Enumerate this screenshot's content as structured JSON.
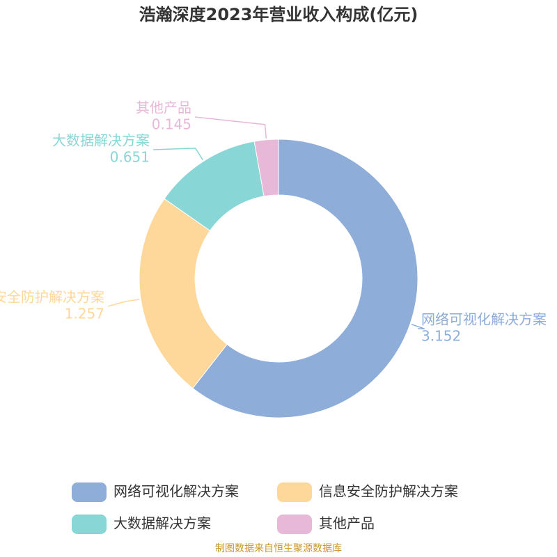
{
  "chart_data": {
    "type": "donut",
    "title": "浩瀚深度2023年营业收入构成(亿元)",
    "categories": [
      "网络可视化解决方案",
      "信息安全防护解决方案",
      "大数据解决方案",
      "其他产品"
    ],
    "values": [
      3.152,
      1.257,
      0.651,
      0.145
    ],
    "colors": [
      "#8eadd9",
      "#fdd89a",
      "#88d6d6",
      "#e8b8d8"
    ],
    "source": "制图数据来自恒生聚源数据库"
  }
}
